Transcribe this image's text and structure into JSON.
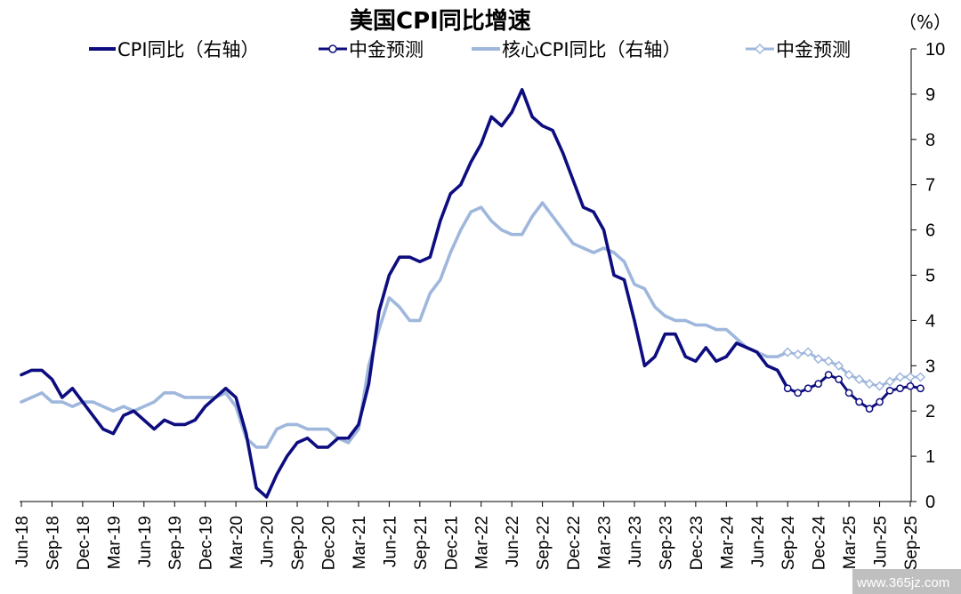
{
  "chart_data": {
    "type": "line",
    "title": "美国CPI同比增速",
    "unit_label": "（%）",
    "y_axis": {
      "position": "right",
      "ylim": [
        0,
        10
      ],
      "ticks": [
        "0",
        "1",
        "2",
        "3",
        "4",
        "5",
        "6",
        "7",
        "8",
        "9",
        "10"
      ]
    },
    "x_tick_labels": [
      "Jun-18",
      "Sep-18",
      "Dec-18",
      "Mar-19",
      "Jun-19",
      "Sep-19",
      "Dec-19",
      "Mar-20",
      "Jun-20",
      "Sep-20",
      "Dec-20",
      "Mar-21",
      "Jun-21",
      "Sep-21",
      "Dec-21",
      "Mar-22",
      "Jun-22",
      "Sep-22",
      "Dec-22",
      "Mar-23",
      "Jun-23",
      "Sep-23",
      "Dec-23",
      "Mar-24",
      "Jun-24",
      "Sep-24",
      "Dec-24",
      "Mar-25",
      "Jun-25",
      "Sep-25"
    ],
    "x_start": "Jun-18",
    "x_end": "Oct-25",
    "series": [
      {
        "name": "CPI同比（右轴）",
        "color": "#0d0d80",
        "start_index": 0,
        "values": [
          2.8,
          2.9,
          2.9,
          2.7,
          2.3,
          2.5,
          2.2,
          1.9,
          1.6,
          1.5,
          1.9,
          2.0,
          1.8,
          1.6,
          1.8,
          1.7,
          1.7,
          1.8,
          2.1,
          2.3,
          2.5,
          2.3,
          1.5,
          0.3,
          0.1,
          0.6,
          1.0,
          1.3,
          1.4,
          1.2,
          1.2,
          1.4,
          1.4,
          1.7,
          2.6,
          4.2,
          5.0,
          5.4,
          5.4,
          5.3,
          5.4,
          6.2,
          6.8,
          7.0,
          7.5,
          7.9,
          8.5,
          8.3,
          8.6,
          9.1,
          8.5,
          8.3,
          8.2,
          7.7,
          7.1,
          6.5,
          6.4,
          6.0,
          5.0,
          4.9,
          4.0,
          3.0,
          3.2,
          3.7,
          3.7,
          3.2,
          3.1,
          3.4,
          3.1,
          3.2,
          3.5,
          3.4,
          3.3,
          3.0,
          2.9,
          2.5
        ]
      },
      {
        "name": "中金预测",
        "color": "#0d0d80",
        "marker": "circle",
        "start_index": 75,
        "values": [
          2.5,
          2.4,
          2.5,
          2.6,
          2.8,
          2.7,
          2.4,
          2.2,
          2.05,
          2.2,
          2.45,
          2.5,
          2.55,
          2.5
        ]
      },
      {
        "name": "核心CPI同比（右轴）",
        "color": "#9fb7dc",
        "start_index": 0,
        "values": [
          2.2,
          2.3,
          2.4,
          2.2,
          2.2,
          2.1,
          2.2,
          2.2,
          2.1,
          2.0,
          2.1,
          2.0,
          2.1,
          2.2,
          2.4,
          2.4,
          2.3,
          2.3,
          2.3,
          2.3,
          2.4,
          2.1,
          1.4,
          1.2,
          1.2,
          1.6,
          1.7,
          1.7,
          1.6,
          1.6,
          1.6,
          1.4,
          1.3,
          1.6,
          3.0,
          3.8,
          4.5,
          4.3,
          4.0,
          4.0,
          4.6,
          4.9,
          5.5,
          6.0,
          6.4,
          6.5,
          6.2,
          6.0,
          5.9,
          5.9,
          6.3,
          6.6,
          6.3,
          6.0,
          5.7,
          5.6,
          5.5,
          5.6,
          5.5,
          5.3,
          4.8,
          4.7,
          4.3,
          4.1,
          4.0,
          4.0,
          3.9,
          3.9,
          3.8,
          3.8,
          3.6,
          3.4,
          3.3,
          3.2,
          3.2,
          3.3
        ]
      },
      {
        "name": "中金预测",
        "color": "#9fb7dc",
        "marker": "diamond",
        "start_index": 75,
        "values": [
          3.3,
          3.25,
          3.3,
          3.15,
          3.1,
          3.0,
          2.8,
          2.7,
          2.6,
          2.55,
          2.65,
          2.75,
          2.75,
          2.75
        ]
      }
    ],
    "legend": {
      "placement": "top"
    }
  },
  "watermark": "www.365jz.com"
}
